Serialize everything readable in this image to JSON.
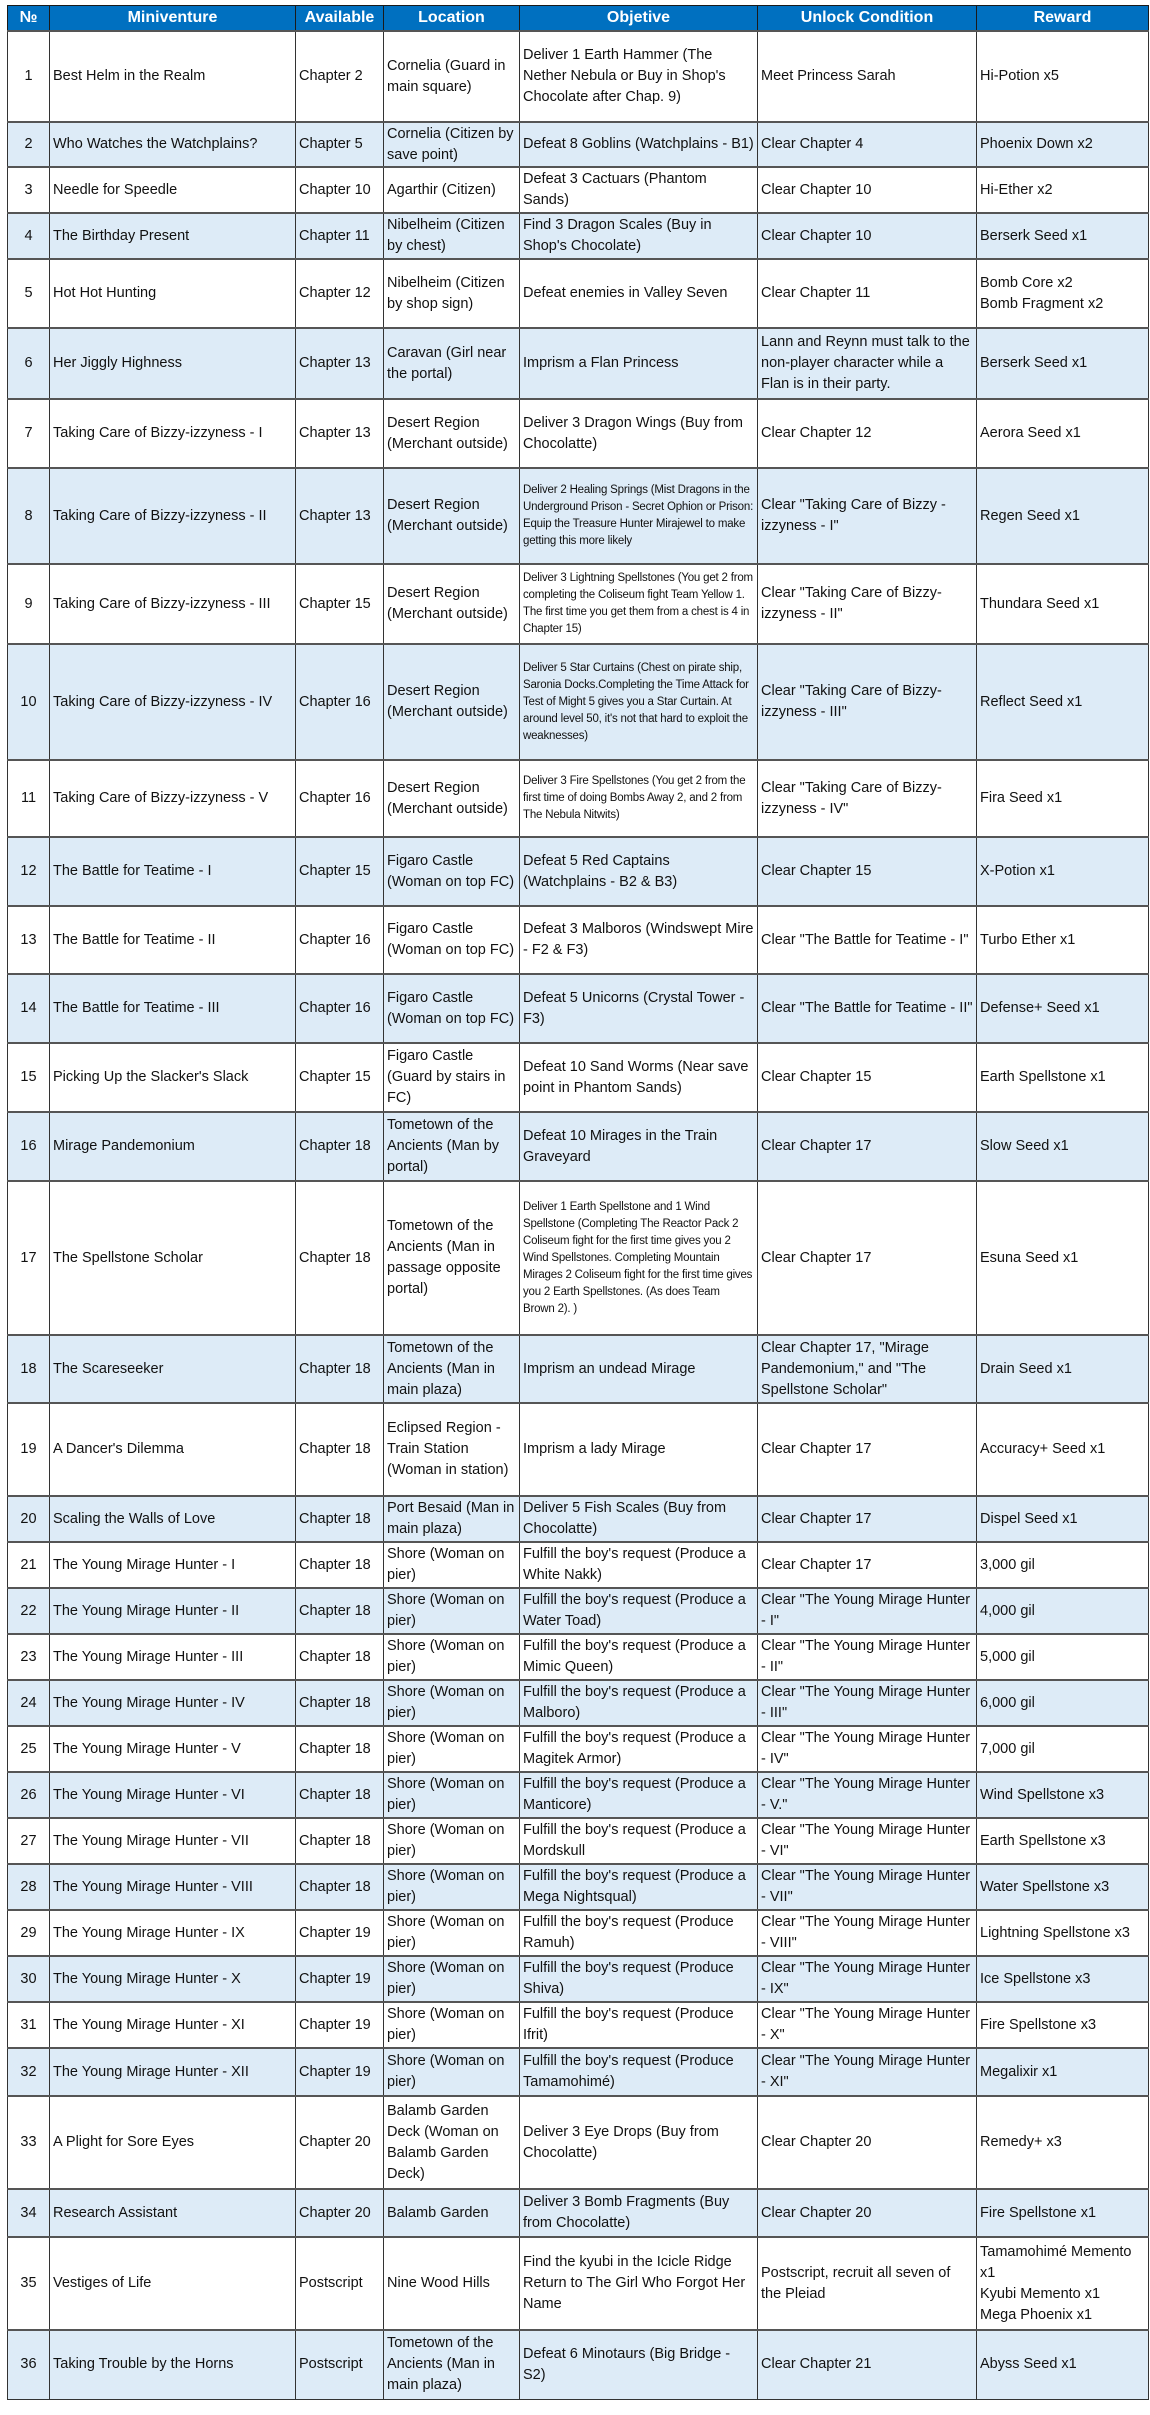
{
  "colors": {
    "header_bg": "#0070C0",
    "header_text": "#FFFFFF",
    "alt_row_bg": "#DDEBF7"
  },
  "headers": [
    "№",
    "Miniventure",
    "Available",
    "Location",
    "Objetive",
    "Unlock Condition",
    "Reward"
  ],
  "rows": [
    [
      "1",
      "Best Helm in the Realm",
      "Chapter 2",
      "Cornelia (Guard in main square)",
      "Deliver 1 Earth Hammer (The Nether Nebula or Buy in Shop's Chocolate after Chap. 9)",
      "Meet Princess Sarah",
      "Hi-Potion x5"
    ],
    [
      "2",
      "Who Watches the Watchplains?",
      "Chapter 5",
      "Cornelia (Citizen by save point)",
      "Defeat 8 Goblins (Watchplains - B1)",
      "Clear Chapter 4",
      "Phoenix Down x2"
    ],
    [
      "3",
      "Needle for Speedle",
      "Chapter 10",
      "Agarthir (Citizen)",
      "Defeat 3 Cactuars (Phantom Sands)",
      "Clear Chapter 10",
      "Hi-Ether x2"
    ],
    [
      "4",
      "The Birthday Present",
      "Chapter 11",
      "Nibelheim (Citizen by chest)",
      "Find 3 Dragon Scales (Buy in Shop's Chocolate)",
      "Clear Chapter 10",
      "Berserk Seed x1"
    ],
    [
      "5",
      "Hot Hot Hunting",
      "Chapter 12",
      "Nibelheim (Citizen by shop sign)",
      "Defeat enemies in Valley Seven",
      "Clear Chapter 11",
      "Bomb Core x2\nBomb Fragment x2"
    ],
    [
      "6",
      "Her Jiggly Highness",
      "Chapter 13",
      "Caravan (Girl near the portal)",
      "Imprism a Flan Princess",
      "Lann and Reynn must talk to the non-player character while a Flan is in their party.",
      "Berserk Seed x1"
    ],
    [
      "7",
      "Taking Care of Bizzy-izzyness - I",
      "Chapter 13",
      "Desert Region (Merchant outside)",
      "Deliver 3 Dragon Wings (Buy from Chocolatte)",
      "Clear Chapter 12",
      "Aerora Seed x1"
    ],
    [
      "8",
      "Taking Care of Bizzy-izzyness - II",
      "Chapter 13",
      "Desert Region (Merchant outside)",
      "Deliver 2 Healing Springs (Mist Dragons in the Underground Prison - Secret Ophion or Prison: Equip the Treasure Hunter Mirajewel to make getting this more likely",
      "Clear \"Taking Care of Bizzy - izzyness - I\"",
      "Regen Seed x1"
    ],
    [
      "9",
      "Taking Care of Bizzy-izzyness - III",
      "Chapter 15",
      "Desert Region (Merchant outside)",
      "Deliver 3 Lightning Spellstones (You get 2 from completing the Coliseum fight Team Yellow 1. The first time you get them from a chest is 4 in Chapter 15)",
      "Clear \"Taking Care of Bizzy-izzyness - II\"",
      "Thundara Seed x1"
    ],
    [
      "10",
      "Taking Care of Bizzy-izzyness - IV",
      "Chapter 16",
      "Desert Region (Merchant outside)",
      "Deliver 5 Star Curtains (Chest on pirate ship, Saronia Docks.Completing the Time Attack for Test of Might 5 gives you a Star Curtain. At around level 50, it's not that hard to exploit the weaknesses)",
      "Clear \"Taking Care of Bizzy-izzyness - III\"",
      "Reflect Seed x1"
    ],
    [
      "11",
      "Taking Care of Bizzy-izzyness - V",
      "Chapter 16",
      "Desert Region (Merchant outside)",
      "Deliver 3 Fire Spellstones (You get 2 from the first time of doing Bombs Away 2, and 2 from The Nebula Nitwits)",
      "Clear \"Taking Care of Bizzy-izzyness - IV\"",
      "Fira Seed x1"
    ],
    [
      "12",
      "The Battle for Teatime - I",
      "Chapter 15",
      "Figaro Castle (Woman on top FC)",
      "Defeat 5 Red Captains (Watchplains - B2 & B3)",
      "Clear Chapter 15",
      "X-Potion x1"
    ],
    [
      "13",
      "The Battle for Teatime - II",
      "Chapter 16",
      "Figaro Castle (Woman on top FC)",
      "Defeat 3 Malboros (Windswept Mire - F2 & F3)",
      "Clear \"The Battle for Teatime - I\"",
      "Turbo Ether x1"
    ],
    [
      "14",
      "The Battle for Teatime - III",
      "Chapter 16",
      "Figaro Castle (Woman on top FC)",
      "Defeat 5 Unicorns (Crystal Tower - F3)",
      "Clear \"The Battle for Teatime - II\"",
      "Defense+ Seed x1"
    ],
    [
      "15",
      "Picking Up the Slacker's Slack",
      "Chapter 15",
      "Figaro Castle (Guard by stairs in FC)",
      "Defeat 10 Sand Worms (Near save point in Phantom Sands)",
      "Clear Chapter 15",
      "Earth Spellstone x1"
    ],
    [
      "16",
      "Mirage Pandemonium",
      "Chapter 18",
      "Tometown of the Ancients (Man by portal)",
      "Defeat 10 Mirages in the Train Graveyard",
      "Clear Chapter 17",
      "Slow Seed x1"
    ],
    [
      "17",
      "The Spellstone Scholar",
      "Chapter 18",
      "Tometown of the Ancients (Man in passage opposite portal)",
      "Deliver 1 Earth Spellstone and 1 Wind Spellstone (Completing The Reactor Pack 2 Coliseum fight for the first time gives you 2 Wind Spellstones. Completing Mountain Mirages 2 Coliseum fight for the first time gives you 2 Earth Spellstones. (As does Team Brown 2). )",
      "Clear Chapter 17",
      "Esuna Seed x1"
    ],
    [
      "18",
      "The Scareseeker",
      "Chapter 18",
      "Tometown of the Ancients (Man in main plaza)",
      "Imprism an undead Mirage",
      "Clear Chapter 17, \"Mirage Pandemonium,\" and \"The Spellstone Scholar\"",
      "Drain Seed x1"
    ],
    [
      "19",
      "A Dancer's Dilemma",
      "Chapter 18",
      "Eclipsed Region - Train Station (Woman in station)",
      "Imprism a lady Mirage",
      "Clear Chapter 17",
      "Accuracy+ Seed x1"
    ],
    [
      "20",
      "Scaling the Walls of Love",
      "Chapter 18",
      "Port Besaid (Man in main plaza)",
      "Deliver 5 Fish Scales (Buy from Chocolatte)",
      "Clear Chapter 17",
      "Dispel Seed x1"
    ],
    [
      "21",
      "The Young Mirage Hunter - I",
      "Chapter 18",
      "Shore (Woman on pier)",
      "Fulfill the boy's request (Produce a White Nakk)",
      "Clear Chapter 17",
      "3,000 gil"
    ],
    [
      "22",
      "The Young Mirage Hunter - II",
      "Chapter 18",
      "Shore (Woman on pier)",
      "Fulfill the boy's request (Produce a Water Toad)",
      "Clear \"The Young Mirage Hunter - I\"",
      "4,000 gil"
    ],
    [
      "23",
      "The Young Mirage Hunter - III",
      "Chapter 18",
      "Shore (Woman on pier)",
      "Fulfill the boy's request (Produce a Mimic Queen)",
      "Clear \"The Young Mirage Hunter - II\"",
      "5,000 gil"
    ],
    [
      "24",
      "The Young Mirage Hunter - IV",
      "Chapter 18",
      "Shore (Woman on pier)",
      "Fulfill the boy's request (Produce a Malboro)",
      "Clear \"The Young Mirage Hunter - III\"",
      "6,000 gil"
    ],
    [
      "25",
      "The Young Mirage Hunter - V",
      "Chapter 18",
      "Shore (Woman on pier)",
      "Fulfill the boy's request (Produce a Magitek Armor)",
      "Clear \"The Young Mirage Hunter - IV\"",
      "7,000 gil"
    ],
    [
      "26",
      "The Young Mirage Hunter - VI",
      "Chapter 18",
      "Shore (Woman on pier)",
      "Fulfill the boy's request (Produce a Manticore)",
      "Clear \"The Young Mirage Hunter - V.\"",
      "Wind Spellstone x3"
    ],
    [
      "27",
      "The Young Mirage Hunter - VII",
      "Chapter 18",
      "Shore (Woman on pier)",
      "Fulfill the boy's request (Produce a Mordskull",
      "Clear \"The Young Mirage Hunter - VI\"",
      "Earth Spellstone x3"
    ],
    [
      "28",
      "The Young Mirage Hunter - VIII",
      "Chapter 18",
      "Shore (Woman on pier)",
      "Fulfill the boy's request (Produce a Mega Nightsqual)",
      "Clear \"The Young Mirage Hunter - VII\"",
      "Water Spellstone x3"
    ],
    [
      "29",
      "The Young Mirage Hunter - IX",
      "Chapter 19",
      "Shore (Woman on pier)",
      "Fulfill the boy's request (Produce Ramuh)",
      "Clear \"The Young Mirage Hunter - VIII\"",
      "Lightning Spellstone x3"
    ],
    [
      "30",
      "The Young Mirage Hunter - X",
      "Chapter 19",
      "Shore (Woman on pier)",
      "Fulfill the boy's request (Produce Shiva)",
      "Clear \"The Young Mirage Hunter - IX\"",
      "Ice Spellstone x3"
    ],
    [
      "31",
      "The Young Mirage Hunter - XI",
      "Chapter 19",
      "Shore (Woman on pier)",
      "Fulfill the boy's request (Produce Ifrit)",
      "Clear \"The Young Mirage Hunter - X\"",
      "Fire Spellstone x3"
    ],
    [
      "32",
      "The Young Mirage Hunter - XII",
      "Chapter 19",
      "Shore (Woman on pier)",
      "Fulfill the boy's request (Produce Tamamohimé)",
      "Clear \"The Young Mirage Hunter - XI\"",
      "Megalixir x1"
    ],
    [
      "33",
      "A Plight for Sore Eyes",
      "Chapter 20",
      "Balamb Garden Deck (Woman on Balamb Garden Deck)",
      "Deliver 3 Eye Drops (Buy from Chocolatte)",
      "Clear Chapter 20",
      "Remedy+ x3"
    ],
    [
      "34",
      "Research Assistant",
      "Chapter 20",
      "Balamb Garden",
      "Deliver 3 Bomb Fragments (Buy from Chocolatte)",
      "Clear Chapter 20",
      "Fire Spellstone x1"
    ],
    [
      "35",
      "Vestiges of Life",
      "Postscript",
      "Nine Wood Hills",
      "Find the kyubi in the Icicle Ridge\nReturn to The Girl Who Forgot Her Name",
      "Postscript, recruit all seven of the Pleiad",
      "Tamamohimé Memento x1\nKyubi Memento x1\nMega Phoenix x1"
    ],
    [
      "36",
      "Taking Trouble by the Horns",
      "Postscript",
      "Tometown of the Ancients (Man in main plaza)",
      "Defeat 6 Minotaurs (Big Bridge - S2)",
      "Clear Chapter 21",
      "Abyss Seed x1"
    ]
  ]
}
